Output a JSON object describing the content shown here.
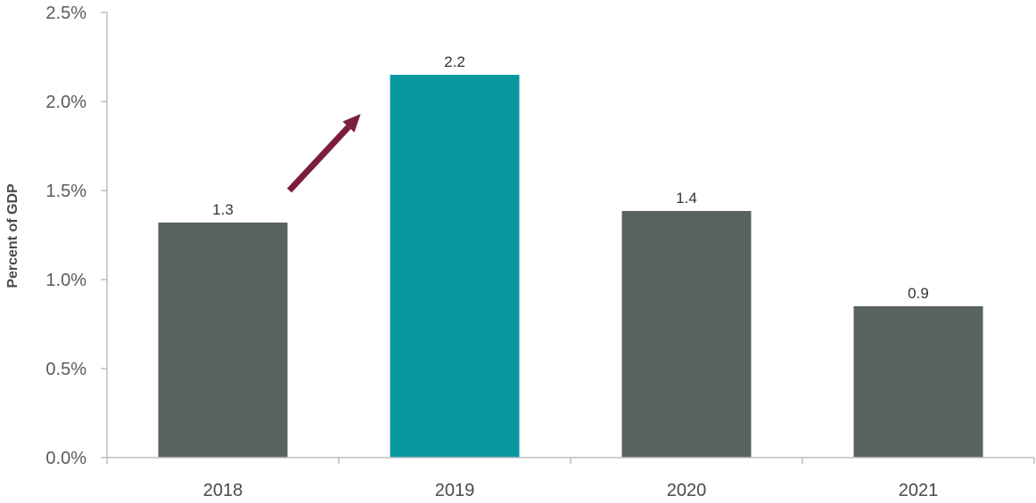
{
  "chart_data": {
    "type": "bar",
    "categories": [
      "2018",
      "2019",
      "2020",
      "2021"
    ],
    "values": [
      1.32,
      2.15,
      1.385,
      0.85
    ],
    "data_labels": [
      "1.3",
      "2.2",
      "1.4",
      "0.9"
    ],
    "ylabel": "Percent of GDP",
    "ylim": [
      0,
      2.5
    ],
    "yticks": [
      0.0,
      0.5,
      1.0,
      1.5,
      2.0,
      2.5
    ],
    "ytick_labels": [
      "0.0%",
      "0.5%",
      "1.0%",
      "1.5%",
      "2.0%",
      "2.5%"
    ],
    "grid": false,
    "legend": "none",
    "colors": {
      "default_bar": "#58635f",
      "highlight_bar": "#0798a0",
      "arrow": "#7c1d40",
      "axis": "#bdbdbd"
    },
    "highlight_index": 1,
    "annotation": {
      "type": "arrow",
      "from": {
        "category": "2018",
        "value": 1.5
      },
      "to": {
        "category": "2019",
        "value": 1.93
      }
    }
  }
}
